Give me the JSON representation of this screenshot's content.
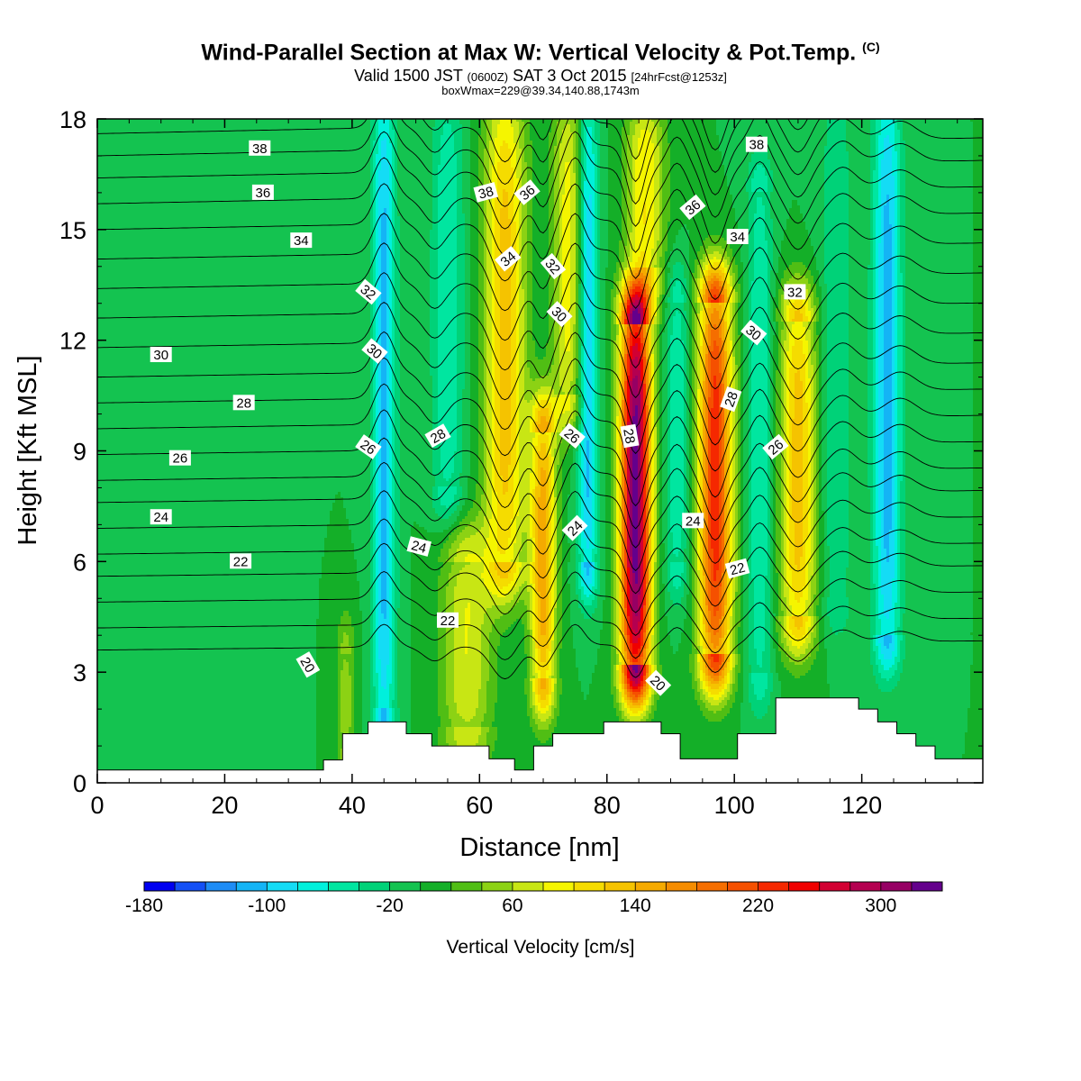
{
  "header": {
    "title": "Wind-Parallel Section at Max W: Vertical Velocity & Pot.Temp.",
    "title_mark": "(C)",
    "valid_main_1": "Valid 1500 JST",
    "valid_utc": "(0600Z)",
    "valid_main_2": "SAT 3 Oct 2015",
    "valid_fcst": "[24hrFcst@1253z]",
    "box_info": "boxWmax=229@39.34,140.88,1743m"
  },
  "chart_data": {
    "type": "heatmap",
    "title": "Wind-Parallel Section at Max W: Vertical Velocity & Pot.Temp.",
    "xlabel": "Distance [nm]",
    "ylabel": "Height [Kft MSL]",
    "xlim": [
      0,
      139
    ],
    "ylim": [
      0,
      18
    ],
    "x_ticks": [
      0,
      20,
      40,
      60,
      80,
      100,
      120
    ],
    "y_ticks": [
      0,
      3,
      6,
      9,
      12,
      15,
      18
    ],
    "colorbar": {
      "label": "Vertical Velocity [cm/s]",
      "min": -180,
      "step": 20,
      "tick_labels": [
        "-180",
        "-100",
        "-20",
        "60",
        "140",
        "220",
        "300"
      ],
      "colors": [
        "#0000f0",
        "#1450f5",
        "#1e8cf5",
        "#14b4f5",
        "#14dcf5",
        "#00f0dc",
        "#00e6a0",
        "#00d278",
        "#14c350",
        "#14af28",
        "#50be14",
        "#8cd214",
        "#c8e614",
        "#f5f500",
        "#f5dc00",
        "#f5c300",
        "#f5aa00",
        "#f58c00",
        "#f56e00",
        "#f55000",
        "#f52800",
        "#f00000",
        "#d20032",
        "#b40050",
        "#960064",
        "#64008c"
      ]
    },
    "terrain": {
      "x": [
        0,
        35.5,
        35.5,
        38.5,
        38.5,
        42.5,
        42.5,
        48.5,
        48.5,
        52.5,
        52.5,
        61.5,
        61.5,
        65.5,
        65.5,
        68.5,
        68.5,
        71.5,
        71.5,
        79.5,
        79.5,
        88.5,
        88.5,
        91.5,
        91.5,
        100.5,
        100.5,
        106.5,
        106.5,
        119.5,
        119.5,
        122.5,
        122.5,
        125.5,
        125.5,
        128.5,
        128.5,
        131.5,
        131.5,
        134.5,
        134.5,
        139
      ],
      "y": [
        0.35,
        0.35,
        0.62,
        0.62,
        1.33,
        1.33,
        1.65,
        1.65,
        1.33,
        1.33,
        1.0,
        1.0,
        0.65,
        0.65,
        0.35,
        0.35,
        1.0,
        1.0,
        1.33,
        1.33,
        1.65,
        1.65,
        1.33,
        1.33,
        0.65,
        0.65,
        1.33,
        1.33,
        2.3,
        2.3,
        2.0,
        2.0,
        1.65,
        1.65,
        1.33,
        1.33,
        1.0,
        1.0,
        0.65,
        0.65,
        0.65,
        0.65
      ]
    },
    "w_features": [
      {
        "x": 84.5,
        "y_bottom": 3.2,
        "y_top": 12.4,
        "x_halfwidth": 2.4,
        "peak": 330
      },
      {
        "x": 97,
        "y_bottom": 3.5,
        "y_top": 13.0,
        "x_halfwidth": 2.6,
        "peak": 230
      },
      {
        "x": 110,
        "y_bottom": 4.5,
        "y_top": 12.5,
        "x_halfwidth": 2.8,
        "peak": 130
      },
      {
        "x": 64,
        "y_bottom": 6.0,
        "y_top": 18.0,
        "x_halfwidth": 3.2,
        "peak": 130
      },
      {
        "x": 70,
        "y_bottom": 2.8,
        "y_top": 9.5,
        "x_halfwidth": 2.0,
        "peak": 150
      },
      {
        "x": 74,
        "y_bottom": 10.5,
        "y_top": 18.0,
        "x_halfwidth": 2.6,
        "peak": 90
      },
      {
        "x": 58,
        "y_bottom": 1.5,
        "y_top": 6.0,
        "x_halfwidth": 4.0,
        "peak": 80
      },
      {
        "x": 86,
        "y_bottom": 14.0,
        "y_top": 18.0,
        "x_halfwidth": 3.0,
        "peak": 100
      },
      {
        "x": 45,
        "y_bottom": 2.0,
        "y_top": 18.0,
        "x_halfwidth": 1.8,
        "peak": -110
      },
      {
        "x": 77,
        "y_bottom": 6.0,
        "y_top": 18.0,
        "x_halfwidth": 1.6,
        "peak": -110
      },
      {
        "x": 124,
        "y_bottom": 4.0,
        "y_top": 18.0,
        "x_halfwidth": 2.2,
        "peak": -110
      },
      {
        "x": 55,
        "y_bottom": 8.0,
        "y_top": 18.0,
        "x_halfwidth": 2.5,
        "peak": -60
      },
      {
        "x": 91,
        "y_bottom": 6.0,
        "y_top": 13.0,
        "x_halfwidth": 1.8,
        "peak": -60
      },
      {
        "x": 104,
        "y_bottom": 3.0,
        "y_top": 16.0,
        "x_halfwidth": 2.0,
        "peak": -60
      },
      {
        "x": 116,
        "y_bottom": 5.0,
        "y_top": 18.0,
        "x_halfwidth": 2.5,
        "peak": -40
      },
      {
        "x": 23,
        "y_bottom": 2.0,
        "y_top": 18.0,
        "x_halfwidth": 4.0,
        "peak": -20
      },
      {
        "x": 39,
        "y_bottom": 0.9,
        "y_top": 3.5,
        "x_halfwidth": 1.5,
        "peak": 50
      }
    ],
    "isentropes": {
      "levels": [
        20,
        21,
        22,
        23,
        24,
        25,
        26,
        27,
        28,
        29,
        30,
        31,
        32,
        33,
        34,
        35,
        36,
        37,
        38,
        39,
        40,
        41
      ],
      "base_height_kft": [
        3.6,
        4.2,
        4.9,
        5.6,
        6.2,
        6.9,
        7.6,
        8.2,
        8.9,
        9.6,
        10.3,
        11.0,
        11.8,
        12.6,
        13.4,
        14.2,
        15.0,
        15.7,
        16.4,
        17.0,
        17.6,
        18.2
      ],
      "labels": [
        {
          "text": "38",
          "x": 25.5,
          "y": 17.2,
          "angle": 0
        },
        {
          "text": "36",
          "x": 26,
          "y": 16.0,
          "angle": 0
        },
        {
          "text": "34",
          "x": 32,
          "y": 14.7,
          "angle": 0
        },
        {
          "text": "30",
          "x": 10,
          "y": 11.6,
          "angle": 0
        },
        {
          "text": "28",
          "x": 23,
          "y": 10.3,
          "angle": 0
        },
        {
          "text": "26",
          "x": 13,
          "y": 8.8,
          "angle": 0
        },
        {
          "text": "24",
          "x": 10,
          "y": 7.2,
          "angle": 0
        },
        {
          "text": "22",
          "x": 22.5,
          "y": 6.0,
          "angle": 0
        },
        {
          "text": "20",
          "x": 33,
          "y": 3.2,
          "angle": 60
        },
        {
          "text": "32",
          "x": 42.5,
          "y": 13.3,
          "angle": 40
        },
        {
          "text": "30",
          "x": 43.5,
          "y": 11.7,
          "angle": 40
        },
        {
          "text": "26",
          "x": 42.5,
          "y": 9.1,
          "angle": 35
        },
        {
          "text": "24",
          "x": 50.5,
          "y": 6.4,
          "angle": 15
        },
        {
          "text": "22",
          "x": 55,
          "y": 4.4,
          "angle": 0
        },
        {
          "text": "28",
          "x": 53.5,
          "y": 9.4,
          "angle": -30
        },
        {
          "text": "38",
          "x": 61,
          "y": 16.0,
          "angle": -15
        },
        {
          "text": "36",
          "x": 67.5,
          "y": 16.0,
          "angle": -40
        },
        {
          "text": "34",
          "x": 64.5,
          "y": 14.2,
          "angle": -40
        },
        {
          "text": "32",
          "x": 71.5,
          "y": 14.0,
          "angle": 50
        },
        {
          "text": "30",
          "x": 72.5,
          "y": 12.7,
          "angle": 45
        },
        {
          "text": "26",
          "x": 74.5,
          "y": 9.4,
          "angle": 40
        },
        {
          "text": "24",
          "x": 75,
          "y": 6.9,
          "angle": -45
        },
        {
          "text": "28",
          "x": 83.5,
          "y": 9.4,
          "angle": 80
        },
        {
          "text": "36",
          "x": 93.5,
          "y": 15.6,
          "angle": -40
        },
        {
          "text": "34",
          "x": 100.5,
          "y": 14.8,
          "angle": 0
        },
        {
          "text": "24",
          "x": 93.5,
          "y": 7.1,
          "angle": 0
        },
        {
          "text": "22",
          "x": 100.5,
          "y": 5.8,
          "angle": -15
        },
        {
          "text": "20",
          "x": 88,
          "y": 2.7,
          "angle": 45
        },
        {
          "text": "28",
          "x": 99.5,
          "y": 10.4,
          "angle": -70
        },
        {
          "text": "30",
          "x": 103,
          "y": 12.2,
          "angle": 40
        },
        {
          "text": "26",
          "x": 106.5,
          "y": 9.1,
          "angle": -40
        },
        {
          "text": "32",
          "x": 109.5,
          "y": 13.3,
          "angle": 0
        },
        {
          "text": "38",
          "x": 103.5,
          "y": 17.3,
          "angle": 0
        }
      ]
    }
  }
}
